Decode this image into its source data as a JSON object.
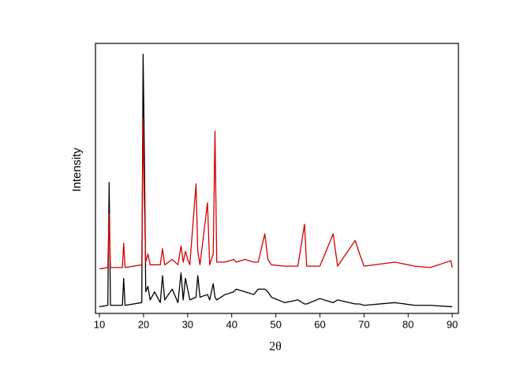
{
  "chart_data": {
    "type": "line",
    "x_label": "2θ",
    "y_label": "Intensity",
    "x": [
      10,
      11.9,
      12.2,
      12.5,
      15.2,
      15.5,
      15.8,
      19.6,
      19.9,
      20.2,
      20.5,
      21,
      21.5,
      22.5,
      23.8,
      24.3,
      24.8,
      26.5,
      27.8,
      28.5,
      29,
      29.5,
      30,
      30.5,
      31.9,
      32.3,
      32.8,
      34.5,
      35,
      35.8,
      36.2,
      36.6,
      38.5,
      40.5,
      41,
      43,
      45,
      46,
      47.5,
      48.2,
      49,
      52,
      55,
      56.5,
      57,
      60,
      63,
      64,
      68,
      69,
      70,
      77,
      81.5,
      85,
      89.7,
      90
    ],
    "series": [
      {
        "color": "#000000",
        "values": [
          2.5,
          3,
          48.5,
          3,
          3,
          13,
          3,
          4,
          96,
          58,
          8,
          10,
          5,
          8,
          4,
          14,
          5,
          9,
          4,
          15,
          5,
          13,
          9,
          5,
          6,
          14,
          6,
          7,
          5,
          11,
          6,
          5,
          7,
          8,
          9,
          8,
          7,
          9,
          9,
          8,
          6,
          4,
          5,
          3.5,
          3.5,
          5.5,
          4,
          5,
          3.5,
          3.5,
          3,
          4,
          3,
          3,
          2.5,
          2.5
        ]
      },
      {
        "color": "#d40000",
        "values": [
          16.5,
          17,
          37,
          17,
          17,
          26,
          17,
          18,
          72,
          40,
          19,
          22,
          18,
          18,
          18,
          24,
          18,
          20,
          18,
          25,
          19,
          23,
          20,
          18,
          48,
          23,
          18,
          41,
          18,
          22,
          67.5,
          19,
          19,
          20,
          19,
          20,
          19,
          19,
          29.5,
          20,
          18,
          17.5,
          17.5,
          33,
          17.5,
          17.5,
          29.5,
          17.5,
          27,
          22,
          17.5,
          19,
          17.5,
          17,
          19.5,
          17
        ]
      }
    ],
    "xlim": [
      9.1,
      91.4
    ],
    "ylim": [
      0,
      100
    ],
    "xticks": [
      10,
      20,
      30,
      40,
      50,
      60,
      70,
      80,
      90
    ]
  }
}
